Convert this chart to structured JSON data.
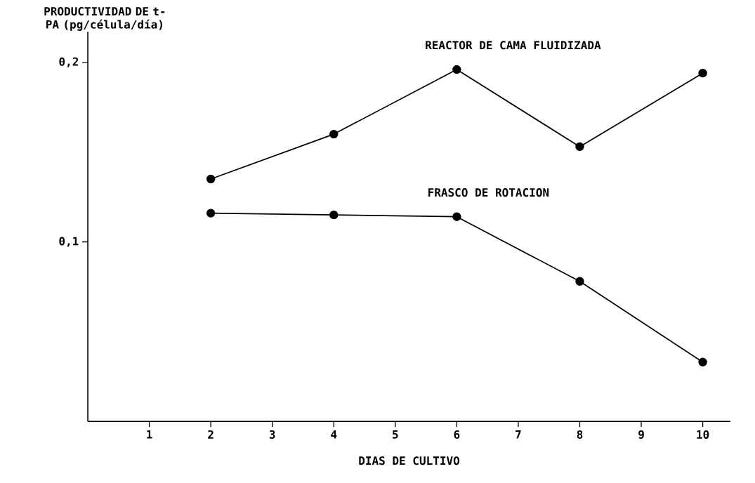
{
  "chart_data": {
    "type": "line",
    "xlabel": "DIAS DE CULTIVO",
    "ylabel": "PRODUCTIVIDAD DE t-PA (pg/célula/día)",
    "x": [
      2,
      4,
      6,
      8,
      10
    ],
    "series": [
      {
        "name": "REACTOR DE CAMA FLUIDIZADA",
        "color": "#000000",
        "values": [
          0.135,
          0.16,
          0.196,
          0.153,
          0.194
        ]
      },
      {
        "name": "FRASCO DE ROTACION",
        "color": "#000000",
        "values": [
          0.116,
          0.115,
          0.114,
          0.078,
          0.033
        ]
      }
    ],
    "xlim": [
      0,
      10.45
    ],
    "ylim": [
      0,
      0.217
    ],
    "xticks": [
      1,
      2,
      3,
      4,
      5,
      6,
      7,
      8,
      9,
      10
    ],
    "yticks": [
      {
        "value": 0.1,
        "label": "0,1"
      },
      {
        "value": 0.2,
        "label": "0,2"
      }
    ],
    "grid": false,
    "marker": "circle",
    "line_style": "solid"
  }
}
